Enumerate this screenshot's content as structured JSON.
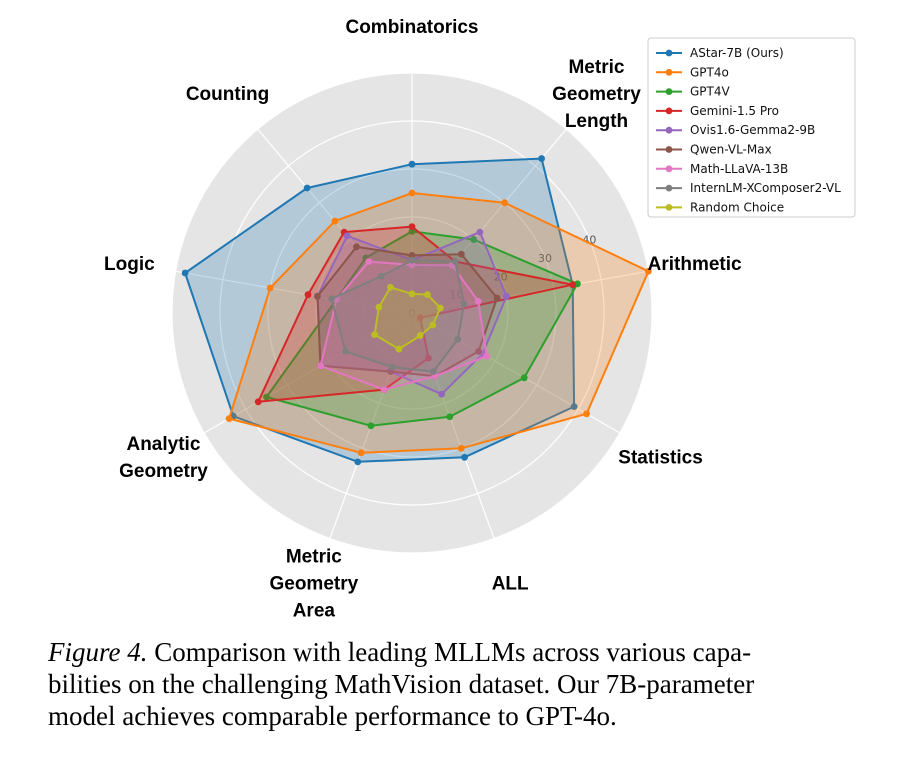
{
  "chart_data": {
    "type": "radar",
    "axes": [
      {
        "label": [
          "Combinatorics"
        ]
      },
      {
        "label": [
          "Metric",
          "Geometry",
          "Length"
        ]
      },
      {
        "label": [
          "Arithmetic"
        ]
      },
      {
        "label": [
          "Statistics"
        ]
      },
      {
        "label": [
          "ALL"
        ]
      },
      {
        "label": [
          "Metric",
          "Geometry",
          "Area"
        ]
      },
      {
        "label": [
          "Analytic",
          "Geometry"
        ]
      },
      {
        "label": [
          "Logic"
        ]
      },
      {
        "label": [
          "Counting"
        ]
      }
    ],
    "rlim": [
      0,
      50
    ],
    "rticks": [
      "0",
      "10",
      "20",
      "30",
      "40"
    ],
    "rtick_values": [
      0,
      10,
      20,
      30,
      40
    ],
    "grid_values": [
      10,
      20,
      30,
      40,
      50
    ],
    "series": [
      {
        "name": "AStar-7B (Ours)",
        "color": "#1f77b4",
        "values": [
          31,
          42,
          34,
          39,
          32,
          33,
          43,
          48,
          34
        ]
      },
      {
        "name": "GPT4o",
        "color": "#ff7f0e",
        "values": [
          25,
          30,
          50,
          42,
          30,
          31,
          44,
          30,
          25
        ]
      },
      {
        "name": "GPT4V",
        "color": "#2ca02c",
        "values": [
          17,
          20,
          35,
          27,
          23,
          25,
          35,
          16,
          15
        ]
      },
      {
        "name": "Gemini-1.5 Pro",
        "color": "#d62728",
        "values": [
          18,
          14,
          34,
          2,
          10,
          17,
          37,
          22,
          22
        ]
      },
      {
        "name": "Ovis1.6-Gemma2-9B",
        "color": "#9467bd",
        "values": [
          11,
          22,
          20,
          17,
          18,
          13,
          22,
          20,
          21
        ]
      },
      {
        "name": "Qwen-VL-Max",
        "color": "#8c564b",
        "values": [
          12,
          16,
          18,
          16,
          14,
          13,
          22,
          20,
          18
        ]
      },
      {
        "name": "Math-LLaVA-13B",
        "color": "#e377c2",
        "values": [
          10,
          13,
          14,
          18,
          14,
          17,
          22,
          16,
          14
        ]
      },
      {
        "name": "InternLM-XComposer2-VL",
        "color": "#7f7f7f",
        "values": [
          11,
          14,
          11,
          11,
          13,
          12,
          16,
          17,
          10
        ]
      },
      {
        "name": "Random Choice",
        "color": "#bcbd22",
        "values": [
          4,
          5,
          6,
          5,
          5,
          8,
          9,
          7,
          7
        ]
      }
    ]
  },
  "caption": {
    "figure_label": "Figure 4.",
    "line1_text": " Comparison with leading MLLMs across various capa-",
    "line2": "bilities on the challenging MathVision dataset. Our 7B-parameter",
    "line3": "model achieves comparable performance to GPT-4o."
  }
}
